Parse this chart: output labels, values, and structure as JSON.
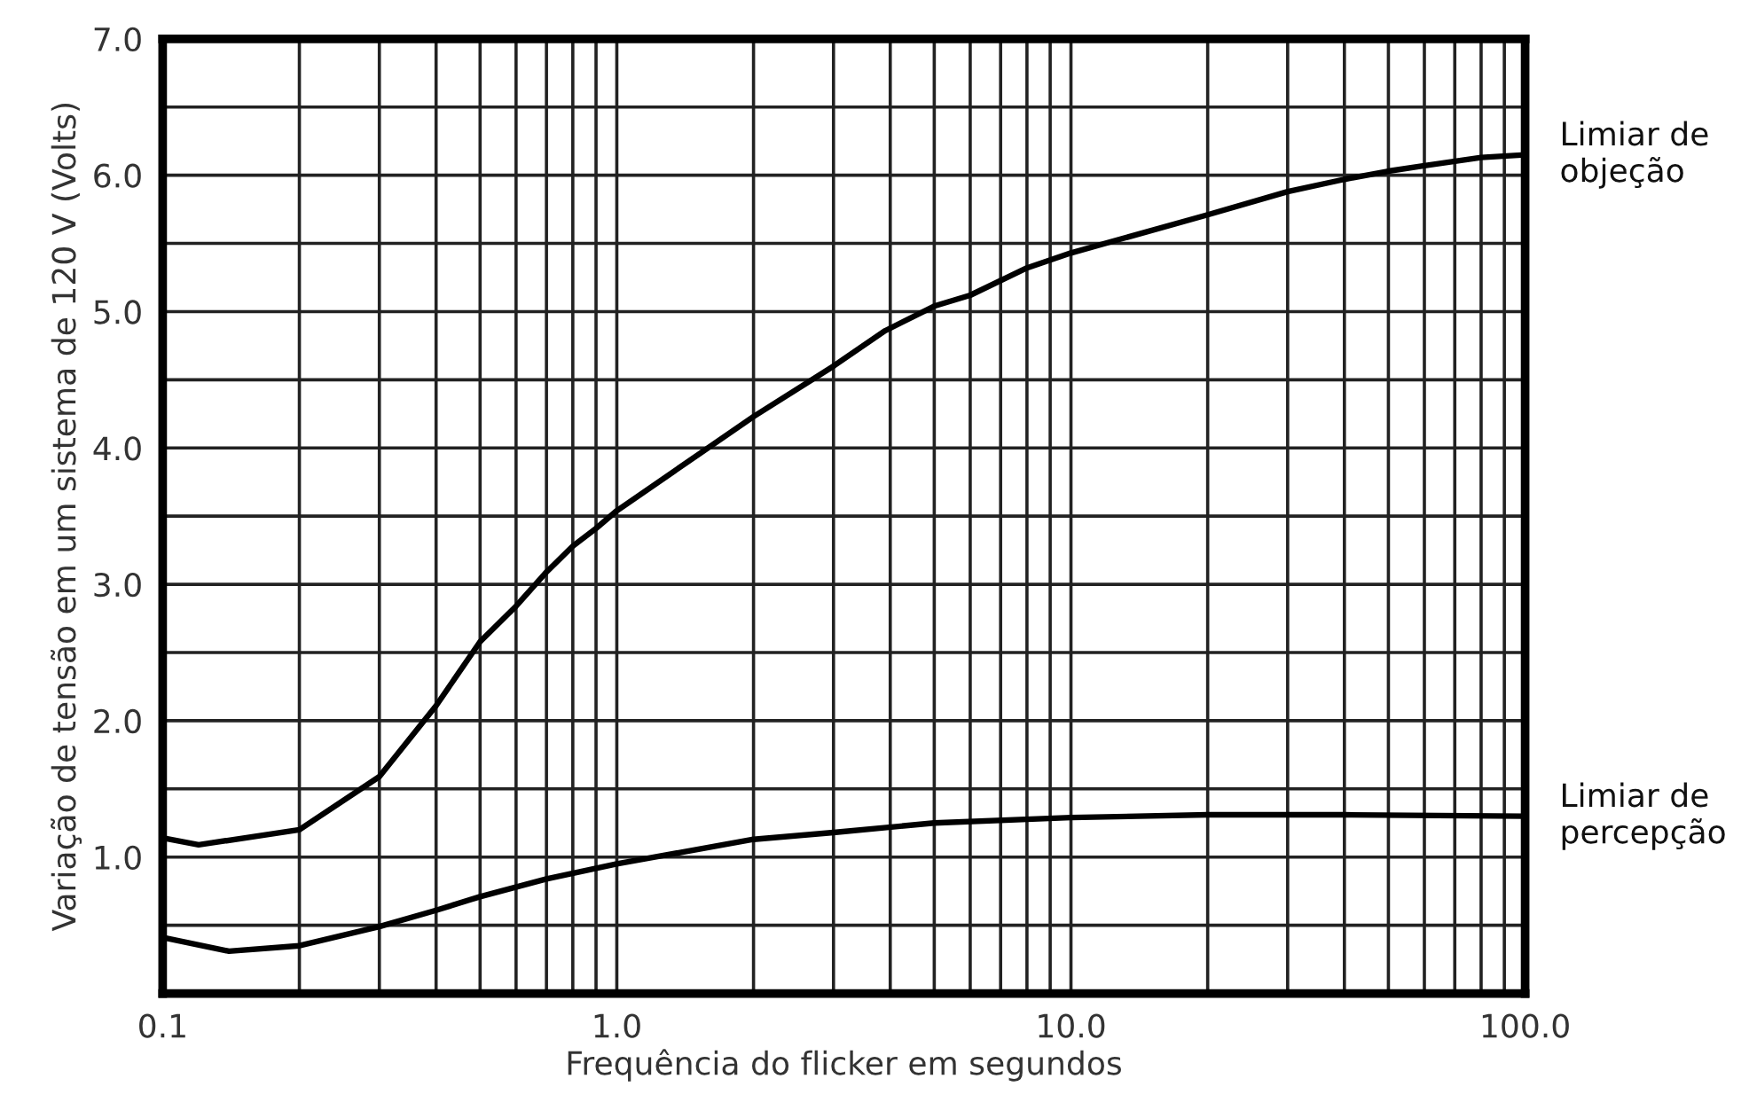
{
  "chart_data": {
    "type": "line",
    "xlabel": "Frequência do flicker em segundos",
    "ylabel": "Variação de tensão em um sistema de 120 V (Volts)",
    "log": "x",
    "grid": true,
    "marker": "none",
    "line_style": "solid",
    "legend": false,
    "xlim": [
      0.1,
      100
    ],
    "ylim": [
      0,
      7
    ],
    "xticks": [
      {
        "value": 0.1,
        "label": "0.1"
      },
      {
        "value": 0.2,
        "label": null
      },
      {
        "value": 0.3,
        "label": null
      },
      {
        "value": 0.4,
        "label": null
      },
      {
        "value": 0.5,
        "label": null
      },
      {
        "value": 0.6,
        "label": null
      },
      {
        "value": 0.7,
        "label": null
      },
      {
        "value": 0.8,
        "label": null
      },
      {
        "value": 0.9,
        "label": null
      },
      {
        "value": 1,
        "label": "1.0"
      },
      {
        "value": 2,
        "label": null
      },
      {
        "value": 3,
        "label": null
      },
      {
        "value": 4,
        "label": null
      },
      {
        "value": 5,
        "label": null
      },
      {
        "value": 6,
        "label": null
      },
      {
        "value": 7,
        "label": null
      },
      {
        "value": 8,
        "label": null
      },
      {
        "value": 9,
        "label": null
      },
      {
        "value": 10,
        "label": "10.0"
      },
      {
        "value": 20,
        "label": null
      },
      {
        "value": 30,
        "label": null
      },
      {
        "value": 40,
        "label": null
      },
      {
        "value": 50,
        "label": null
      },
      {
        "value": 60,
        "label": null
      },
      {
        "value": 70,
        "label": null
      },
      {
        "value": 80,
        "label": null
      },
      {
        "value": 90,
        "label": null
      },
      {
        "value": 100,
        "label": "100.0"
      }
    ],
    "yticks": [
      {
        "value": 0.5,
        "label": null
      },
      {
        "value": 1,
        "label": "1.0"
      },
      {
        "value": 1.5,
        "label": null
      },
      {
        "value": 2,
        "label": "2.0"
      },
      {
        "value": 2.5,
        "label": null
      },
      {
        "value": 3,
        "label": "3.0"
      },
      {
        "value": 3.5,
        "label": null
      },
      {
        "value": 4,
        "label": "4.0"
      },
      {
        "value": 4.5,
        "label": null
      },
      {
        "value": 5,
        "label": "5.0"
      },
      {
        "value": 5.5,
        "label": null
      },
      {
        "value": 6,
        "label": "6.0"
      },
      {
        "value": 6.5,
        "label": null
      },
      {
        "value": 7,
        "label": "7.0"
      }
    ],
    "series": [
      {
        "name": "Limiar de\nobjeção",
        "color": "#000000",
        "x": [
          0.1,
          0.12,
          0.2,
          0.3,
          0.4,
          0.5,
          0.6,
          0.7,
          0.8,
          0.9,
          1,
          2,
          3,
          3.9,
          5,
          6,
          8,
          10,
          20,
          30,
          40,
          50,
          60,
          80,
          100
        ],
        "values": [
          1.14,
          1.09,
          1.2,
          1.59,
          2.11,
          2.58,
          2.84,
          3.09,
          3.28,
          3.41,
          3.54,
          4.23,
          4.6,
          4.86,
          5.04,
          5.12,
          5.32,
          5.43,
          5.71,
          5.88,
          5.97,
          6.03,
          6.07,
          6.13,
          6.15
        ]
      },
      {
        "name": "Limiar de\npercepção",
        "color": "#000000",
        "x": [
          0.1,
          0.14,
          0.2,
          0.3,
          0.4,
          0.5,
          0.7,
          1,
          2,
          3,
          5,
          10,
          20,
          40,
          100
        ],
        "values": [
          0.41,
          0.31,
          0.35,
          0.49,
          0.61,
          0.71,
          0.84,
          0.95,
          1.13,
          1.18,
          1.25,
          1.29,
          1.31,
          1.31,
          1.3
        ]
      }
    ]
  }
}
